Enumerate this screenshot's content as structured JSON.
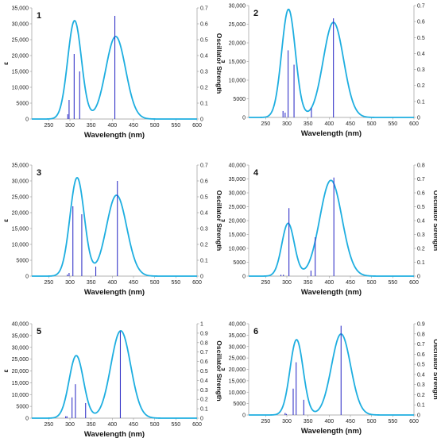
{
  "figure": {
    "colors": {
      "curve": "#1eaee0",
      "stick": "#3434c8",
      "axis": "#999999",
      "text": "#111111"
    }
  },
  "chart_data": [
    {
      "type": "line",
      "label": "1",
      "xlabel": "Wavelength (nm)",
      "ylabel_left": "ε",
      "ylabel_right": "Oscillator Strength",
      "xlim": [
        210,
        600
      ],
      "xticks": [
        250,
        300,
        350,
        400,
        450,
        500,
        550,
        600
      ],
      "ylim": [
        0,
        35000
      ],
      "yticks": [
        0,
        5000,
        10000,
        15000,
        20000,
        25000,
        30000,
        35000
      ],
      "ytick_labels": [
        "0",
        "5000",
        "10,000",
        "15,000",
        "20,000",
        "25,000",
        "30,000",
        "35,000"
      ],
      "y2lim": [
        0,
        0.7
      ],
      "y2ticks": [
        0,
        0.1,
        0.2,
        0.3,
        0.4,
        0.5,
        0.6,
        0.7
      ],
      "y2tick_labels": [
        "0",
        "0.1",
        "0.2",
        "0.3",
        "0.4",
        "0.5",
        "0.6",
        "0.7"
      ],
      "spectrum": {
        "bands": [
          {
            "center": 311,
            "amp": 31000,
            "width": 23
          },
          {
            "center": 408,
            "amp": 26000,
            "width": 33
          }
        ]
      },
      "sticks": [
        {
          "x": 295,
          "f": 0.03
        },
        {
          "x": 298,
          "f": 0.12
        },
        {
          "x": 310,
          "f": 0.41
        },
        {
          "x": 323,
          "f": 0.3
        },
        {
          "x": 406,
          "f": 0.65
        }
      ]
    },
    {
      "type": "line",
      "label": "2",
      "xlabel": "Wavelength (nm)",
      "ylabel_left": "ε",
      "ylabel_right": "",
      "xlim": [
        210,
        600
      ],
      "xticks": [
        250,
        300,
        350,
        400,
        450,
        500,
        550,
        600
      ],
      "ylim": [
        0,
        30000
      ],
      "yticks": [
        0,
        5000,
        10000,
        15000,
        20000,
        25000,
        30000
      ],
      "ytick_labels": [
        "0",
        "5000",
        "10,000",
        "15,000",
        "20,000",
        "25,000",
        "30,000"
      ],
      "y2lim": [
        0,
        0.7
      ],
      "y2ticks": [
        0,
        0.1,
        0.2,
        0.3,
        0.4,
        0.5,
        0.6,
        0.7
      ],
      "y2tick_labels": [
        "0",
        "0.1",
        "0.2",
        "0.3",
        "0.4",
        "0.5",
        "0.6",
        "0.7"
      ],
      "spectrum": {
        "bands": [
          {
            "center": 304,
            "amp": 29000,
            "width": 23
          },
          {
            "center": 410,
            "amp": 25500,
            "width": 34
          }
        ]
      },
      "sticks": [
        {
          "x": 291,
          "f": 0.04
        },
        {
          "x": 296,
          "f": 0.03
        },
        {
          "x": 303,
          "f": 0.42
        },
        {
          "x": 317,
          "f": 0.33
        },
        {
          "x": 358,
          "f": 0.06
        },
        {
          "x": 410,
          "f": 0.62
        }
      ]
    },
    {
      "type": "line",
      "label": "3",
      "xlabel": "Wavelength (nm)",
      "ylabel_left": "ε",
      "ylabel_right": "Oscillator Strength",
      "xlim": [
        210,
        600
      ],
      "xticks": [
        250,
        300,
        350,
        400,
        450,
        500,
        550,
        600
      ],
      "ylim": [
        0,
        35000
      ],
      "yticks": [
        0,
        5000,
        10000,
        15000,
        20000,
        25000,
        30000,
        35000
      ],
      "ytick_labels": [
        "0",
        "5000",
        "10,000",
        "15,000",
        "20,000",
        "25,000",
        "30,000",
        "35,000"
      ],
      "y2lim": [
        0,
        0.7
      ],
      "y2ticks": [
        0,
        0.1,
        0.2,
        0.3,
        0.4,
        0.5,
        0.6,
        0.7
      ],
      "y2tick_labels": [
        "0",
        "0.1",
        "0.2",
        "0.3",
        "0.4",
        "0.5",
        "0.6",
        "0.7"
      ],
      "spectrum": {
        "bands": [
          {
            "center": 317,
            "amp": 31000,
            "width": 24
          },
          {
            "center": 410,
            "amp": 25500,
            "width": 34
          }
        ]
      },
      "sticks": [
        {
          "x": 294,
          "f": 0.01
        },
        {
          "x": 298,
          "f": 0.02
        },
        {
          "x": 307,
          "f": 0.44
        },
        {
          "x": 328,
          "f": 0.39
        },
        {
          "x": 361,
          "f": 0.06
        },
        {
          "x": 412,
          "f": 0.6
        }
      ]
    },
    {
      "type": "line",
      "label": "4",
      "xlabel": "Wavelength (nm)",
      "ylabel_left": "ε",
      "ylabel_right": "Oscillator Strength",
      "xlim": [
        210,
        600
      ],
      "xticks": [
        250,
        300,
        350,
        400,
        450,
        500,
        550,
        600
      ],
      "ylim": [
        0,
        40000
      ],
      "yticks": [
        0,
        5000,
        10000,
        15000,
        20000,
        25000,
        30000,
        35000,
        40000
      ],
      "ytick_labels": [
        "0",
        "5000",
        "10,000",
        "15,000",
        "20,000",
        "25,000",
        "30,000",
        "35,000",
        "40,000"
      ],
      "y2lim": [
        0,
        0.8
      ],
      "y2ticks": [
        0,
        0.1,
        0.2,
        0.3,
        0.4,
        0.5,
        0.6,
        0.7,
        0.8
      ],
      "y2tick_labels": [
        "0",
        "0.1",
        "0.2",
        "0.3",
        "0.4",
        "0.5",
        "0.6",
        "0.7",
        "0.8"
      ],
      "spectrum": {
        "bands": [
          {
            "center": 303,
            "amp": 19000,
            "width": 21
          },
          {
            "center": 404,
            "amp": 34500,
            "width": 37
          }
        ]
      },
      "sticks": [
        {
          "x": 286,
          "f": 0.01
        },
        {
          "x": 292,
          "f": 0.01
        },
        {
          "x": 305,
          "f": 0.49
        },
        {
          "x": 357,
          "f": 0.04
        },
        {
          "x": 367,
          "f": 0.28
        },
        {
          "x": 411,
          "f": 0.71
        }
      ]
    },
    {
      "type": "line",
      "label": "5",
      "xlabel": "Wavelength (nm)",
      "ylabel_left": "ε",
      "ylabel_right": "Oscillator Strength",
      "xlim": [
        210,
        600
      ],
      "xticks": [
        250,
        300,
        350,
        400,
        450,
        500,
        550,
        600
      ],
      "ylim": [
        0,
        40000
      ],
      "yticks": [
        0,
        5000,
        10000,
        15000,
        20000,
        25000,
        30000,
        35000,
        40000
      ],
      "ytick_labels": [
        "0",
        "5000",
        "10,000",
        "15,000",
        "20,000",
        "25,000",
        "30,000",
        "35,000",
        "40,000"
      ],
      "y2lim": [
        0,
        1
      ],
      "y2ticks": [
        0,
        0.1,
        0.2,
        0.3,
        0.4,
        0.5,
        0.6,
        0.7,
        0.8,
        0.9,
        1
      ],
      "y2tick_labels": [
        "0",
        "0.1",
        "0.2",
        "0.3",
        "0.4",
        "0.5",
        "0.6",
        "0.7",
        "0.8",
        "0.9",
        "1"
      ],
      "spectrum": {
        "bands": [
          {
            "center": 315,
            "amp": 26500,
            "width": 24
          },
          {
            "center": 420,
            "amp": 37000,
            "width": 33
          }
        ]
      },
      "sticks": [
        {
          "x": 290,
          "f": 0.02
        },
        {
          "x": 293,
          "f": 0.02
        },
        {
          "x": 305,
          "f": 0.22
        },
        {
          "x": 313,
          "f": 0.36
        },
        {
          "x": 337,
          "f": 0.16
        },
        {
          "x": 419,
          "f": 0.92
        }
      ]
    },
    {
      "type": "line",
      "label": "6",
      "xlabel": "Wavelength (nm)",
      "ylabel_left": "ε",
      "ylabel_right": "Oscillator Strength",
      "xlim": [
        210,
        600
      ],
      "xticks": [
        250,
        300,
        350,
        400,
        450,
        500,
        550,
        600
      ],
      "ylim": [
        0,
        40000
      ],
      "yticks": [
        0,
        5000,
        10000,
        15000,
        20000,
        25000,
        30000,
        35000,
        40000
      ],
      "ytick_labels": [
        "0",
        "5000",
        "10,000",
        "15,000",
        "20,000",
        "25,000",
        "30,000",
        "35,000",
        "40,000"
      ],
      "y2lim": [
        0,
        0.9
      ],
      "y2ticks": [
        0,
        0.1,
        0.2,
        0.3,
        0.4,
        0.5,
        0.6,
        0.7,
        0.8,
        0.9
      ],
      "y2tick_labels": [
        "0",
        "0.1",
        "0.2",
        "0.3",
        "0.4",
        "0.5",
        "0.6",
        "0.7",
        "0.8",
        "0.9"
      ],
      "spectrum": {
        "bands": [
          {
            "center": 323,
            "amp": 33000,
            "width": 22
          },
          {
            "center": 428,
            "amp": 35500,
            "width": 32
          }
        ]
      },
      "sticks": [
        {
          "x": 296,
          "f": 0.02
        },
        {
          "x": 299,
          "f": 0.01
        },
        {
          "x": 315,
          "f": 0.26
        },
        {
          "x": 322,
          "f": 0.52
        },
        {
          "x": 340,
          "f": 0.15
        },
        {
          "x": 428,
          "f": 0.88
        }
      ]
    }
  ]
}
